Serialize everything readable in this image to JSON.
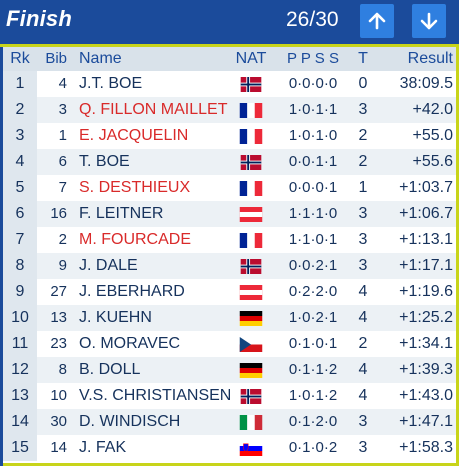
{
  "header": {
    "title": "Finish",
    "counter": "26/30",
    "up_icon": "arrow-up-icon",
    "down_icon": "arrow-down-icon"
  },
  "columns": {
    "rk": "Rk",
    "bib": "Bib",
    "name": "Name",
    "nat": "NAT",
    "ppss": "P P S S",
    "t": "T",
    "result": "Result"
  },
  "colors": {
    "header_bg": "#1b4b9b",
    "accent": "#c8d41a",
    "button": "#2f7fe0",
    "highlight_name": "#d92a2a"
  },
  "rows": [
    {
      "rk": "1",
      "bib": "4",
      "name": "J.T. BOE",
      "nat": "NOR",
      "ppss": "0·0·0·0",
      "t": "0",
      "result": "38:09.5"
    },
    {
      "rk": "2",
      "bib": "3",
      "name": "Q. FILLON MAILLET",
      "nat": "FRA",
      "ppss": "1·0·1·1",
      "t": "3",
      "result": "+42.0"
    },
    {
      "rk": "3",
      "bib": "1",
      "name": "E. JACQUELIN",
      "nat": "FRA",
      "ppss": "1·0·1·0",
      "t": "2",
      "result": "+55.0"
    },
    {
      "rk": "4",
      "bib": "6",
      "name": "T. BOE",
      "nat": "NOR",
      "ppss": "0·0·1·1",
      "t": "2",
      "result": "+55.6"
    },
    {
      "rk": "5",
      "bib": "7",
      "name": "S. DESTHIEUX",
      "nat": "FRA",
      "ppss": "0·0·0·1",
      "t": "1",
      "result": "+1:03.7"
    },
    {
      "rk": "6",
      "bib": "16",
      "name": "F. LEITNER",
      "nat": "AUT",
      "ppss": "1·1·1·0",
      "t": "3",
      "result": "+1:06.7"
    },
    {
      "rk": "7",
      "bib": "2",
      "name": "M. FOURCADE",
      "nat": "FRA",
      "ppss": "1·1·0·1",
      "t": "3",
      "result": "+1:13.1"
    },
    {
      "rk": "8",
      "bib": "9",
      "name": "J. DALE",
      "nat": "NOR",
      "ppss": "0·0·2·1",
      "t": "3",
      "result": "+1:17.1"
    },
    {
      "rk": "9",
      "bib": "27",
      "name": "J. EBERHARD",
      "nat": "AUT",
      "ppss": "0·2·2·0",
      "t": "4",
      "result": "+1:19.6"
    },
    {
      "rk": "10",
      "bib": "13",
      "name": "J. KUEHN",
      "nat": "GER",
      "ppss": "1·0·2·1",
      "t": "4",
      "result": "+1:25.2"
    },
    {
      "rk": "11",
      "bib": "23",
      "name": "O. MORAVEC",
      "nat": "CZE",
      "ppss": "0·1·0·1",
      "t": "2",
      "result": "+1:34.1"
    },
    {
      "rk": "12",
      "bib": "8",
      "name": "B. DOLL",
      "nat": "GER",
      "ppss": "0·1·1·2",
      "t": "4",
      "result": "+1:39.3"
    },
    {
      "rk": "13",
      "bib": "10",
      "name": "V.S. CHRISTIANSEN",
      "nat": "NOR",
      "ppss": "1·0·1·2",
      "t": "4",
      "result": "+1:43.0"
    },
    {
      "rk": "14",
      "bib": "30",
      "name": "D. WINDISCH",
      "nat": "ITA",
      "ppss": "0·1·2·0",
      "t": "3",
      "result": "+1:47.1"
    },
    {
      "rk": "15",
      "bib": "14",
      "name": "J. FAK",
      "nat": "SLO",
      "ppss": "0·1·0·2",
      "t": "3",
      "result": "+1:58.3"
    }
  ]
}
